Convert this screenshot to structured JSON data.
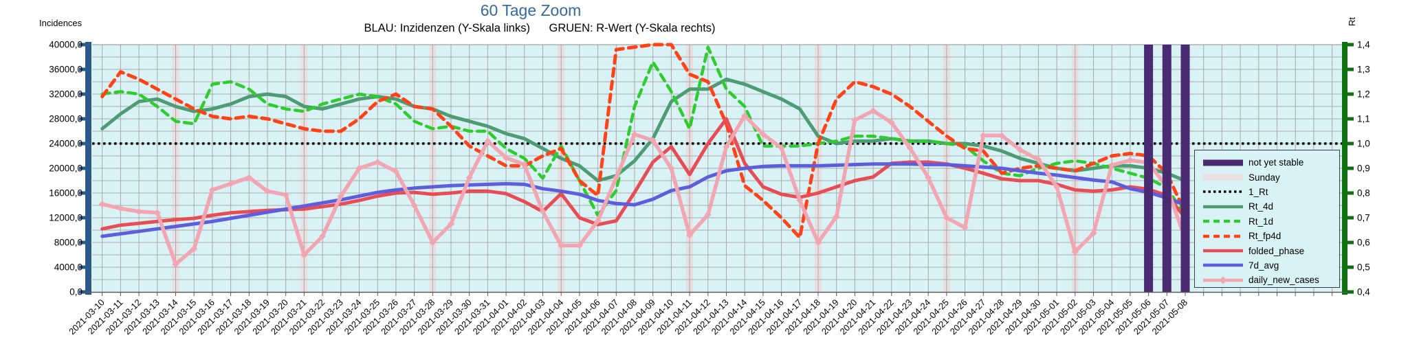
{
  "chart_data": {
    "type": "line",
    "title": "60 Tage Zoom",
    "subtitle": "BLAU: Inzidenzen (Y-Skala links)      GRUEN: R-Wert (Y-Skala rechts)",
    "grid": true,
    "legend_position": "right-overlay",
    "left_axis": {
      "title": "Incidences",
      "min": 0,
      "max": 40000,
      "tick_step": 4000,
      "minor_step": 2000,
      "tick_labels": [
        "40000,0",
        "36000,0",
        "32000,0",
        "28000,0",
        "24000,0",
        "20000,0",
        "16000,0",
        "12000,0",
        "8000,0",
        "4000,0",
        "0,0"
      ],
      "color": "#2a5a8c"
    },
    "right_axis": {
      "title": "Rt",
      "min": 0.4,
      "max": 1.4,
      "tick_step": 0.1,
      "tick_labels": [
        "1,4",
        "1,3",
        "1,2",
        "1,1",
        "1,0",
        "0,9",
        "0,8",
        "0,7",
        "0,6",
        "0,5",
        "0,4"
      ],
      "color": "#0e700e"
    },
    "categories": [
      "2021-03-10",
      "2021-03-11",
      "2021-03-12",
      "2021-03-13",
      "2021-03-14",
      "2021-03-15",
      "2021-03-16",
      "2021-03-17",
      "2021-03-18",
      "2021-03-19",
      "2021-03-20",
      "2021-03-21",
      "2021-03-22",
      "2021-03-23",
      "2021-03-24",
      "2021-03-25",
      "2021-03-26",
      "2021-03-27",
      "2021-03-28",
      "2021-03-29",
      "2021-03-30",
      "2021-03-31",
      "2021-04-01",
      "2021-04-02",
      "2021-04-03",
      "2021-04-04",
      "2021-04-05",
      "2021-04-06",
      "2021-04-07",
      "2021-04-08",
      "2021-04-09",
      "2021-04-10",
      "2021-04-11",
      "2021-04-12",
      "2021-04-13",
      "2021-04-14",
      "2021-04-15",
      "2021-04-16",
      "2021-04-17",
      "2021-04-18",
      "2021-04-19",
      "2021-04-20",
      "2021-04-21",
      "2021-04-22",
      "2021-04-23",
      "2021-04-24",
      "2021-04-25",
      "2021-04-26",
      "2021-04-27",
      "2021-04-28",
      "2021-04-29",
      "2021-04-30",
      "2021-05-01",
      "2021-05-02",
      "2021-05-03",
      "2021-05-04",
      "2021-05-05",
      "2021-05-06",
      "2021-05-07",
      "2021-05-08"
    ],
    "sunday_band": {
      "label": "Sunday",
      "color": "#eadfe0",
      "indices": [
        4,
        11,
        18,
        25,
        32,
        39,
        46,
        53
      ]
    },
    "not_yet_stable": {
      "label": "not yet stable",
      "color": "#4a2a70",
      "indices": [
        57,
        58,
        59
      ]
    },
    "reference_line": {
      "name": "1_Rt",
      "axis": "right",
      "value": 1.0,
      "color": "#000000",
      "style": "dotted"
    },
    "series": [
      {
        "name": "Rt_4d",
        "axis": "right",
        "color": "#4d9c74",
        "style": "solid",
        "width": 5,
        "values": [
          1.06,
          1.12,
          1.17,
          1.18,
          1.15,
          1.13,
          1.14,
          1.16,
          1.19,
          1.2,
          1.19,
          1.15,
          1.14,
          1.16,
          1.18,
          1.19,
          1.18,
          1.15,
          1.14,
          1.11,
          1.09,
          1.07,
          1.04,
          1.02,
          0.98,
          0.94,
          0.91,
          0.85,
          0.87,
          0.93,
          1.02,
          1.17,
          1.22,
          1.22,
          1.26,
          1.24,
          1.21,
          1.18,
          1.14,
          1.03,
          1.0,
          1.01,
          1.01,
          1.02,
          1.01,
          1.01,
          1.0,
          1.0,
          0.99,
          0.97,
          0.94,
          0.92,
          0.9,
          0.89,
          0.9,
          0.91,
          0.91,
          0.9,
          0.88,
          0.85
        ]
      },
      {
        "name": "Rt_1d",
        "axis": "right",
        "color": "#2ecc2e",
        "style": "dashed",
        "width": 4.5,
        "values": [
          1.2,
          1.21,
          1.2,
          1.15,
          1.09,
          1.08,
          1.24,
          1.25,
          1.22,
          1.16,
          1.14,
          1.13,
          1.16,
          1.18,
          1.2,
          1.19,
          1.16,
          1.09,
          1.06,
          1.07,
          1.05,
          1.05,
          0.98,
          0.94,
          0.86,
          0.99,
          0.85,
          0.71,
          0.81,
          1.15,
          1.33,
          1.21,
          1.06,
          1.39,
          1.22,
          1.15,
          0.99,
          0.99,
          0.99,
          1.0,
          1.01,
          1.03,
          1.03,
          1.02,
          1.01,
          1.01,
          1.0,
          0.99,
          0.93,
          0.88,
          0.87,
          0.9,
          0.92,
          0.93,
          0.92,
          0.9,
          0.88,
          0.86,
          0.82,
          0.71
        ]
      },
      {
        "name": "Rt_fp4d",
        "axis": "right",
        "color": "#ff4318",
        "style": "dashed",
        "width": 5,
        "values": [
          1.19,
          1.29,
          1.26,
          1.22,
          1.18,
          1.14,
          1.11,
          1.1,
          1.11,
          1.1,
          1.08,
          1.06,
          1.05,
          1.05,
          1.1,
          1.17,
          1.2,
          1.15,
          1.14,
          1.07,
          0.99,
          0.95,
          0.91,
          0.91,
          0.95,
          0.98,
          0.85,
          0.79,
          1.38,
          1.39,
          1.4,
          1.4,
          1.28,
          1.25,
          1.08,
          0.83,
          0.77,
          0.7,
          0.62,
          1.0,
          1.18,
          1.25,
          1.23,
          1.2,
          1.15,
          1.09,
          1.03,
          0.98,
          0.97,
          0.88,
          0.9,
          0.91,
          0.9,
          0.89,
          0.92,
          0.95,
          0.96,
          0.95,
          0.88,
          0.72
        ]
      },
      {
        "name": "folded_phase",
        "axis": "left",
        "color": "#e84c55",
        "style": "solid",
        "width": 5,
        "values": [
          10200,
          10800,
          11100,
          11400,
          11700,
          11900,
          12400,
          12800,
          13000,
          13200,
          13300,
          13400,
          13800,
          14200,
          14800,
          15500,
          16000,
          16100,
          15800,
          16000,
          16300,
          16300,
          15900,
          14600,
          13000,
          15900,
          12000,
          10900,
          11500,
          16100,
          21000,
          23500,
          19000,
          24000,
          28000,
          20800,
          17000,
          15800,
          15300,
          16000,
          17000,
          18000,
          18600,
          20800,
          21000,
          21000,
          20700,
          20000,
          19200,
          18300,
          18000,
          18000,
          17400,
          16500,
          16300,
          16500,
          17000,
          16600,
          15600,
          12000
        ]
      },
      {
        "name": "7d_avg",
        "axis": "left",
        "color": "#5d5ddd",
        "style": "solid",
        "width": 5,
        "values": [
          9000,
          9400,
          9800,
          10200,
          10600,
          11000,
          11400,
          11900,
          12400,
          12900,
          13400,
          13900,
          14400,
          14900,
          15500,
          16100,
          16500,
          16800,
          17000,
          17200,
          17300,
          17400,
          17500,
          17400,
          16700,
          16300,
          15800,
          14800,
          14300,
          14100,
          15000,
          16400,
          17000,
          18600,
          19600,
          20000,
          20300,
          20400,
          20400,
          20400,
          20500,
          20600,
          20700,
          20700,
          20700,
          20600,
          20600,
          20400,
          20200,
          20000,
          19600,
          19200,
          18900,
          18500,
          18100,
          17800,
          16700,
          16100,
          15200,
          14100
        ]
      },
      {
        "name": "daily_new_cases",
        "axis": "left",
        "color": "#f1a6b2",
        "style": "solid",
        "width": 5.5,
        "marker": "diamond",
        "values": [
          14200,
          13500,
          13000,
          12800,
          4500,
          7000,
          16500,
          17500,
          18500,
          16300,
          15700,
          6000,
          9000,
          15500,
          20000,
          21000,
          19500,
          14000,
          8000,
          11000,
          18500,
          24400,
          21700,
          20600,
          13000,
          7500,
          7500,
          11500,
          18500,
          25500,
          24500,
          20000,
          9200,
          12500,
          23500,
          28500,
          25500,
          23300,
          14800,
          8000,
          12200,
          27800,
          29300,
          27400,
          23300,
          18500,
          12000,
          10400,
          25300,
          25300,
          23000,
          21400,
          17000,
          6500,
          9500,
          20500,
          21300,
          20900,
          17000,
          8500
        ]
      }
    ],
    "legend": [
      {
        "key": "not_yet_stable",
        "label": "not yet stable",
        "swatch": "block",
        "color": "#4a2a70"
      },
      {
        "key": "sunday",
        "label": "Sunday",
        "swatch": "block",
        "color": "#eadfe0"
      },
      {
        "key": "1_Rt",
        "label": "1_Rt",
        "swatch": "dotted",
        "color": "#000000"
      },
      {
        "key": "Rt_4d",
        "label": "Rt_4d",
        "swatch": "solid",
        "color": "#4d9c74"
      },
      {
        "key": "Rt_1d",
        "label": "Rt_1d",
        "swatch": "dashed",
        "color": "#2ecc2e"
      },
      {
        "key": "Rt_fp4d",
        "label": "Rt_fp4d",
        "swatch": "dashed",
        "color": "#ff4318"
      },
      {
        "key": "folded_phase",
        "label": "folded_phase",
        "swatch": "solid",
        "color": "#e84c55"
      },
      {
        "key": "7d_avg",
        "label": "7d_avg",
        "swatch": "solid",
        "color": "#5d5ddd"
      },
      {
        "key": "daily_new_cases",
        "label": "daily_new_cases",
        "swatch": "line-diamond",
        "color": "#f1a6b2"
      }
    ],
    "plot_background": "#d9f2f5",
    "gridline_color": "#a9a9a9",
    "title_color": "#36699f"
  }
}
